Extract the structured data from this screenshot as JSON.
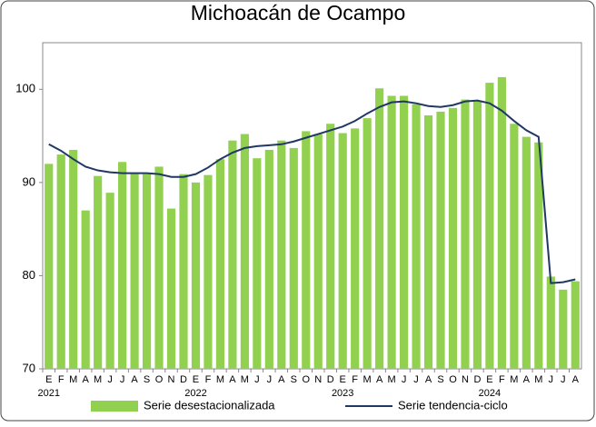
{
  "chart_data": {
    "type": "bar-line",
    "title": "Michoacán de Ocampo",
    "categories": [
      "E",
      "F",
      "M",
      "A",
      "M",
      "J",
      "J",
      "A",
      "S",
      "O",
      "N",
      "D",
      "E",
      "F",
      "M",
      "A",
      "M",
      "J",
      "J",
      "A",
      "S",
      "O",
      "N",
      "D",
      "E",
      "F",
      "M",
      "A",
      "M",
      "J",
      "J",
      "A",
      "S",
      "O",
      "N",
      "D",
      "E",
      "F",
      "M",
      "A",
      "M",
      "J",
      "J",
      "A"
    ],
    "year_labels": [
      "2021",
      "2022",
      "2023",
      "2024"
    ],
    "series": [
      {
        "name": "Serie desestacionalizada",
        "kind": "bar",
        "color": "#92d050",
        "values": [
          92.0,
          93.0,
          93.5,
          87.0,
          90.7,
          88.9,
          92.2,
          91.0,
          90.9,
          91.7,
          87.2,
          90.9,
          90.0,
          90.8,
          92.5,
          94.5,
          95.2,
          92.6,
          93.5,
          94.5,
          93.7,
          95.5,
          95.2,
          96.3,
          95.3,
          95.8,
          96.9,
          100.1,
          99.3,
          99.3,
          98.4,
          97.2,
          97.6,
          98.0,
          98.9,
          98.8,
          100.7,
          101.3,
          96.3,
          94.9,
          94.3,
          79.9,
          78.5,
          79.4
        ]
      },
      {
        "name": "Serie tendencia-ciclo",
        "kind": "line",
        "color": "#1f3864",
        "values": [
          94.1,
          93.4,
          92.5,
          91.7,
          91.3,
          91.1,
          91.0,
          91.0,
          91.0,
          90.9,
          90.6,
          90.6,
          90.9,
          91.6,
          92.5,
          93.2,
          93.7,
          93.9,
          94.0,
          94.1,
          94.4,
          94.8,
          95.2,
          95.6,
          96.0,
          96.6,
          97.4,
          98.1,
          98.6,
          98.7,
          98.5,
          98.2,
          98.1,
          98.3,
          98.7,
          98.8,
          98.5,
          97.7,
          96.6,
          95.6,
          94.9,
          79.2,
          79.3,
          79.6
        ]
      }
    ],
    "ylim": [
      70,
      105
    ],
    "yticks": [
      70,
      80,
      90,
      100
    ],
    "grid": false
  }
}
